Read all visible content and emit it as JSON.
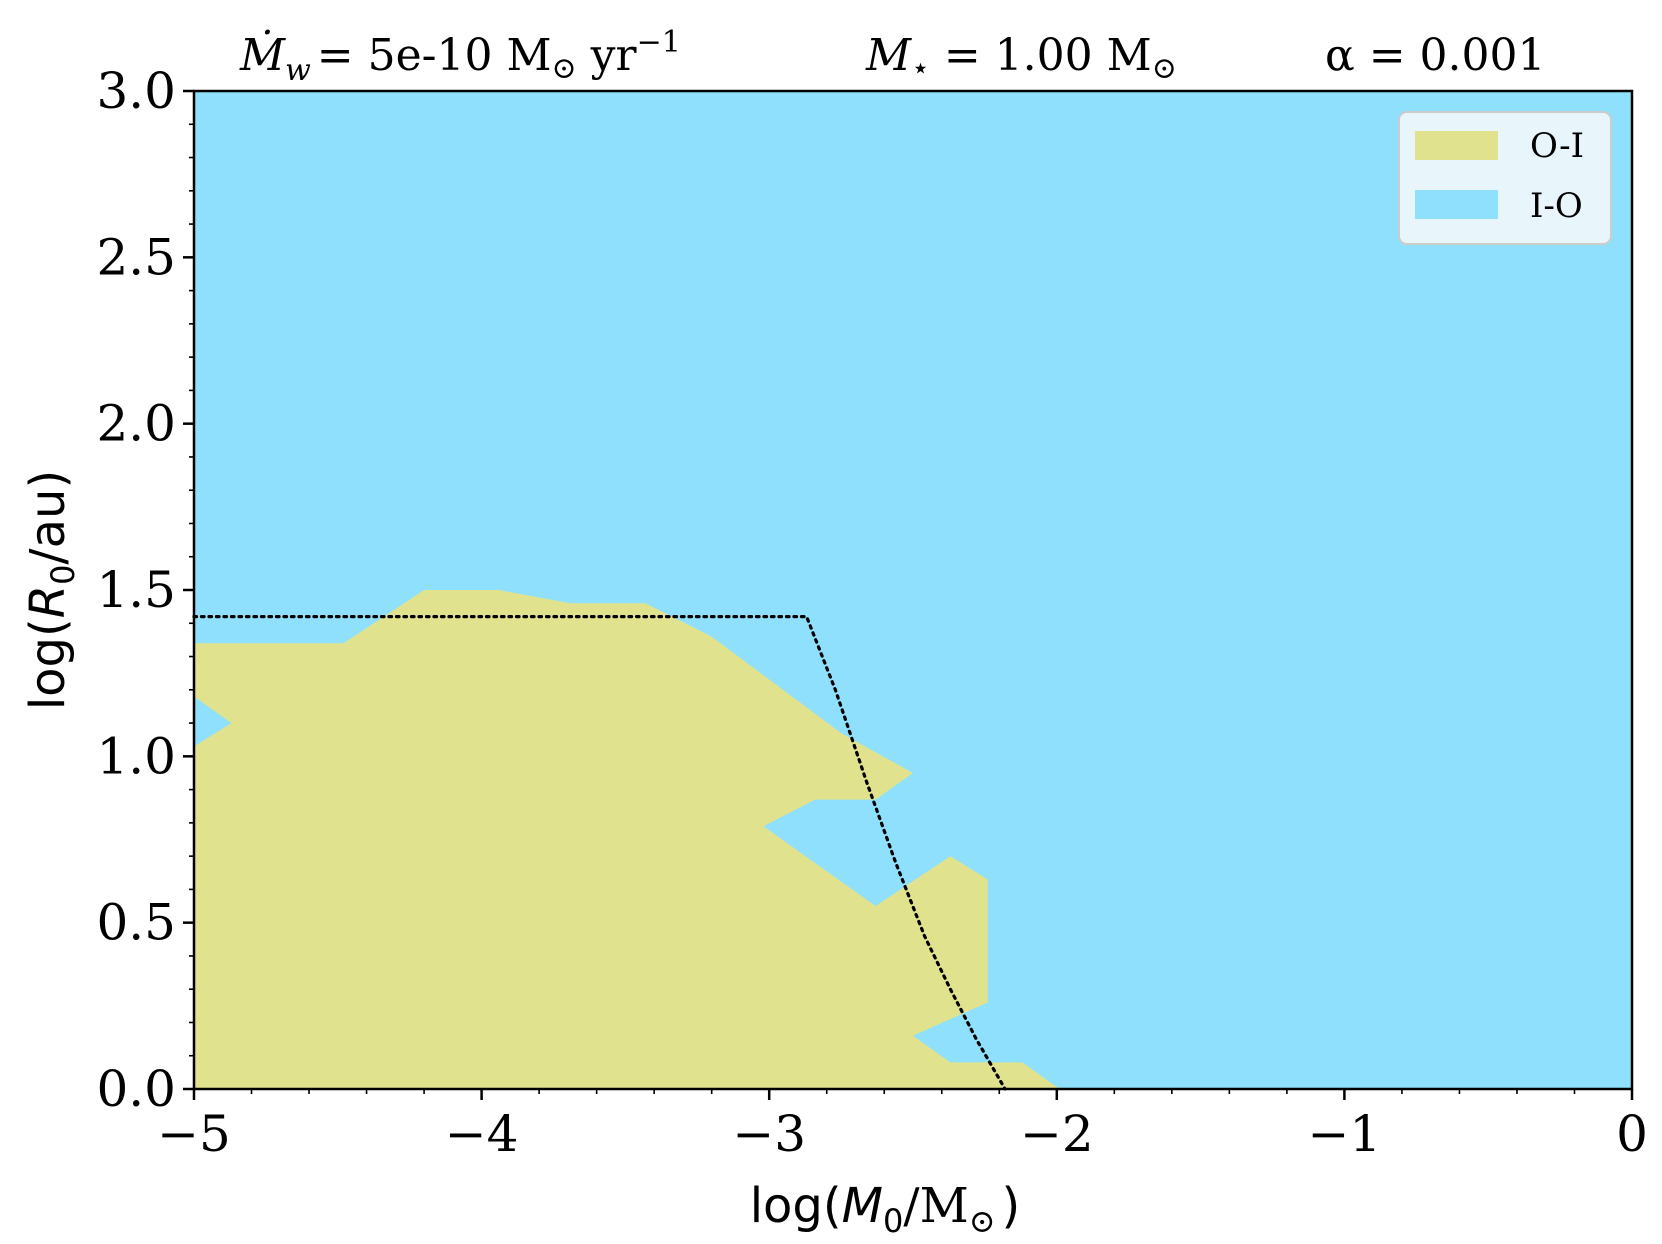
{
  "chart_data": {
    "type": "area",
    "title": {
      "mdot_symbol": "Ṁ",
      "mdot_sub": "w",
      "mdot_value": "= 5e-10 M",
      "mdot_sun": "⊙",
      "mdot_unit": " yr",
      "mdot_exp": "−1",
      "mstar_symbol": "M",
      "mstar_sub": "⋆",
      "mstar_value": " = 1.00 M",
      "mstar_sun": "⊙",
      "alpha_text": "α = 0.001"
    },
    "xlabel": {
      "pre": "log(",
      "var": "M",
      "sub": "0",
      "mid": "/M",
      "sun": "⊙",
      "post": ")"
    },
    "ylabel": {
      "pre": "log(",
      "var": "R",
      "sub": "0",
      "post": "/au)"
    },
    "xlim": [
      -5,
      0
    ],
    "ylim": [
      0,
      3
    ],
    "x_ticks": [
      -5,
      -4,
      -3,
      -2,
      -1,
      0
    ],
    "x_tick_labels": [
      "−5",
      "−4",
      "−3",
      "−2",
      "−1",
      "0"
    ],
    "y_ticks": [
      0,
      0.5,
      1,
      1.5,
      2,
      2.5,
      3
    ],
    "y_tick_labels": [
      "0.0",
      "0.5",
      "1.0",
      "1.5",
      "2.0",
      "2.5",
      "3.0"
    ],
    "x_minor_step": 0.2,
    "y_minor_step": 0.1,
    "grid": false,
    "legend": {
      "position": "top-right",
      "entries": [
        {
          "label": "O-I",
          "color": "#e0e28e"
        },
        {
          "label": "I-O",
          "color": "#8ee0fd"
        }
      ]
    },
    "series": [
      {
        "name": "I-O",
        "kind": "background-region",
        "color": "#8ee0fd"
      },
      {
        "name": "O-I",
        "kind": "region",
        "color": "#e0e28e",
        "polygon": [
          [
            -5.0,
            0.0
          ],
          [
            -5.0,
            1.03
          ],
          [
            -4.87,
            1.1
          ],
          [
            -5.0,
            1.18
          ],
          [
            -5.0,
            1.34
          ],
          [
            -4.48,
            1.34
          ],
          [
            -4.2,
            1.5
          ],
          [
            -3.94,
            1.5
          ],
          [
            -3.69,
            1.46
          ],
          [
            -3.43,
            1.46
          ],
          [
            -3.2,
            1.36
          ],
          [
            -2.75,
            1.07
          ],
          [
            -2.5,
            0.95
          ],
          [
            -2.63,
            0.87
          ],
          [
            -2.84,
            0.87
          ],
          [
            -3.02,
            0.79
          ],
          [
            -2.63,
            0.55
          ],
          [
            -2.37,
            0.7
          ],
          [
            -2.24,
            0.63
          ],
          [
            -2.24,
            0.26
          ],
          [
            -2.37,
            0.21
          ],
          [
            -2.5,
            0.16
          ],
          [
            -2.37,
            0.08
          ],
          [
            -2.12,
            0.08
          ],
          [
            -1.99,
            0.0
          ]
        ]
      },
      {
        "name": "boundary",
        "kind": "dotted-line",
        "color": "#000000",
        "x": [
          -5.0,
          -2.87,
          -2.77,
          -2.66,
          -2.56,
          -2.46,
          -2.37,
          -2.28,
          -2.18
        ],
        "y": [
          1.42,
          1.42,
          1.2,
          0.92,
          0.68,
          0.46,
          0.3,
          0.15,
          0.0
        ]
      }
    ]
  }
}
